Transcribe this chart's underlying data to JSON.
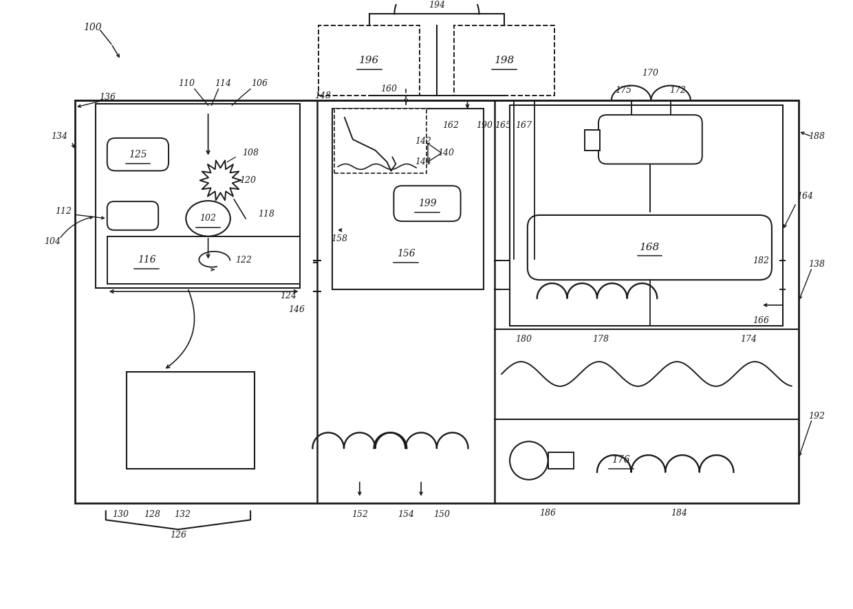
{
  "bg_color": "#ffffff",
  "lc": "#1a1a1a",
  "fig_w": 12.4,
  "fig_h": 8.86,
  "dpi": 100,
  "xlim": [
    0,
    12.4
  ],
  "ylim": [
    0,
    8.86
  ]
}
